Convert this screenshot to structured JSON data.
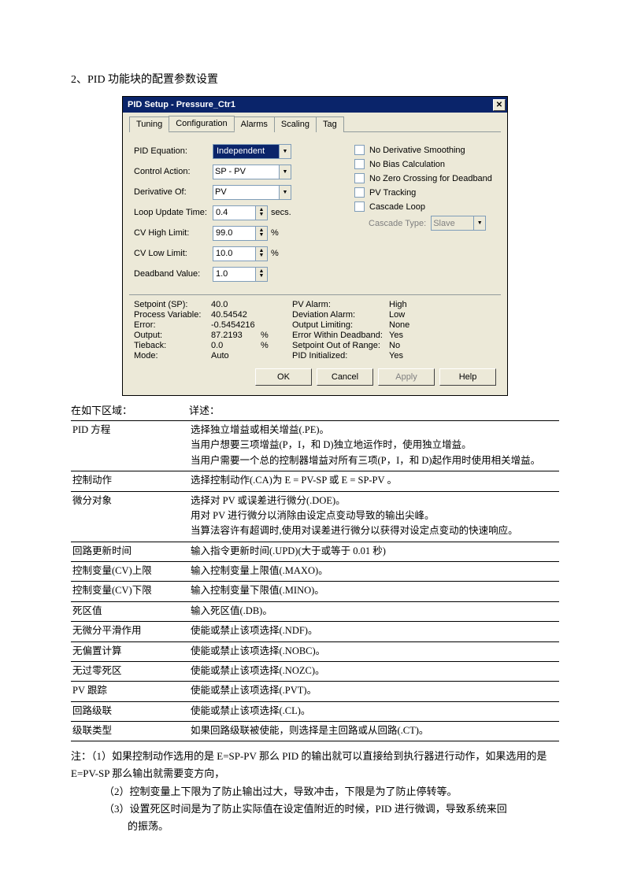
{
  "heading": "2、PID 功能块的配置参数设置",
  "dialog": {
    "title": "PID Setup - Pressure_Ctr1",
    "tabs": [
      "Tuning",
      "Configuration",
      "Alarms",
      "Scaling",
      "Tag"
    ],
    "active_tab": 1,
    "fields": {
      "pid_eq_label": "PID Equation:",
      "pid_eq_value": "Independent",
      "ctrl_action_label": "Control Action:",
      "ctrl_action_value": "SP - PV",
      "deriv_of_label": "Derivative Of:",
      "deriv_of_value": "PV",
      "loop_update_label": "Loop Update Time:",
      "loop_update_value": "0.4",
      "loop_update_unit": "secs.",
      "cv_high_label": "CV High Limit:",
      "cv_high_value": "99.0",
      "cv_high_unit": "%",
      "cv_low_label": "CV Low Limit:",
      "cv_low_value": "10.0",
      "cv_low_unit": "%",
      "deadband_label": "Deadband Value:",
      "deadband_value": "1.0"
    },
    "checks": {
      "no_deriv_smooth": "No Derivative Smoothing",
      "no_bias": "No Bias Calculation",
      "no_zero": "No Zero Crossing for Deadband",
      "pv_track": "PV Tracking",
      "cascade": "Cascade Loop",
      "cascade_type_label": "Cascade Type:",
      "cascade_type_value": "Slave"
    },
    "status_left": {
      "sp_l": "Setpoint (SP):",
      "sp_v": "40.0",
      "pv_l": "Process Variable:",
      "pv_v": "40.54542",
      "err_l": "Error:",
      "err_v": "-0.5454216",
      "out_l": "Output:",
      "out_v": "87.2193",
      "out_u": "%",
      "tie_l": "Tieback:",
      "tie_v": "0.0",
      "tie_u": "%",
      "mode_l": "Mode:",
      "mode_v": "Auto"
    },
    "status_right": {
      "pva_l": "PV Alarm:",
      "pva_v": "High",
      "dev_l": "Deviation Alarm:",
      "dev_v": "Low",
      "ol_l": "Output Limiting:",
      "ol_v": "None",
      "ewd_l": "Error Within Deadband:",
      "ewd_v": "Yes",
      "sor_l": "Setpoint Out of Range:",
      "sor_v": "No",
      "pi_l": "PID Initialized:",
      "pi_v": "Yes"
    },
    "buttons": {
      "ok": "OK",
      "cancel": "Cancel",
      "apply": "Apply",
      "help": "Help"
    }
  },
  "desc_head": {
    "c1": "在如下区域：",
    "c2": "详述："
  },
  "rows": [
    {
      "f": "PID 方程",
      "d": "选择独立增益或相关增益(.PE)。\n当用户想要三项增益(P，I，和 D)独立地运作时，使用独立增益。\n当用户需要一个总的控制器增益对所有三项(P，I，和 D)起作用时使用相关增益。"
    },
    {
      "f": "控制动作",
      "d": "选择控制动作(.CA)为 E = PV-SP 或 E = SP-PV 。"
    },
    {
      "f": "微分对象",
      "d": "选择对 PV 或误差进行微分(.DOE)。\n用对 PV 进行微分以消除由设定点变动导致的输出尖峰。\n当算法容许有超调时,使用对误差进行微分以获得对设定点变动的快速响应。"
    },
    {
      "f": "回路更新时间",
      "d": "输入指令更新时间(.UPD)(大于或等于 0.01 秒)"
    },
    {
      "f": "控制变量(CV)上限",
      "d": "输入控制变量上限值(.MAXO)。"
    },
    {
      "f": "控制变量(CV)下限",
      "d": "输入控制变量下限值(.MINO)。"
    },
    {
      "f": "死区值",
      "d": "输入死区值(.DB)。"
    },
    {
      "f": "无微分平滑作用",
      "d": "使能或禁止该项选择(.NDF)。"
    },
    {
      "f": "无偏置计算",
      "d": "使能或禁止该项选择(.NOBC)。"
    },
    {
      "f": "无过零死区",
      "d": "使能或禁止该项选择(.NOZC)。"
    },
    {
      "f": "PV 跟踪",
      "d": "使能或禁止该项选择(.PVT)。"
    },
    {
      "f": "回路级联",
      "d": "使能或禁止该项选择(.CL)。"
    },
    {
      "f": "级联类型",
      "d": "如果回路级联被使能，则选择是主回路或从回路(.CT)。"
    }
  ],
  "notes": {
    "n1": "注：（1）如果控制动作选用的是 E=SP-PV 那么 PID 的输出就可以直接给到执行器进行动作，如果选用的是 E=PV-SP 那么输出就需要变方向，",
    "n2": "（2）控制变量上下限为了防止输出过大，导致冲击，下限是为了防止停转等。",
    "n3": "（3）设置死区时间是为了防止实际值在设定值附近的时候，PID 进行微调，导致系统来回",
    "n3b": "的振荡。"
  }
}
